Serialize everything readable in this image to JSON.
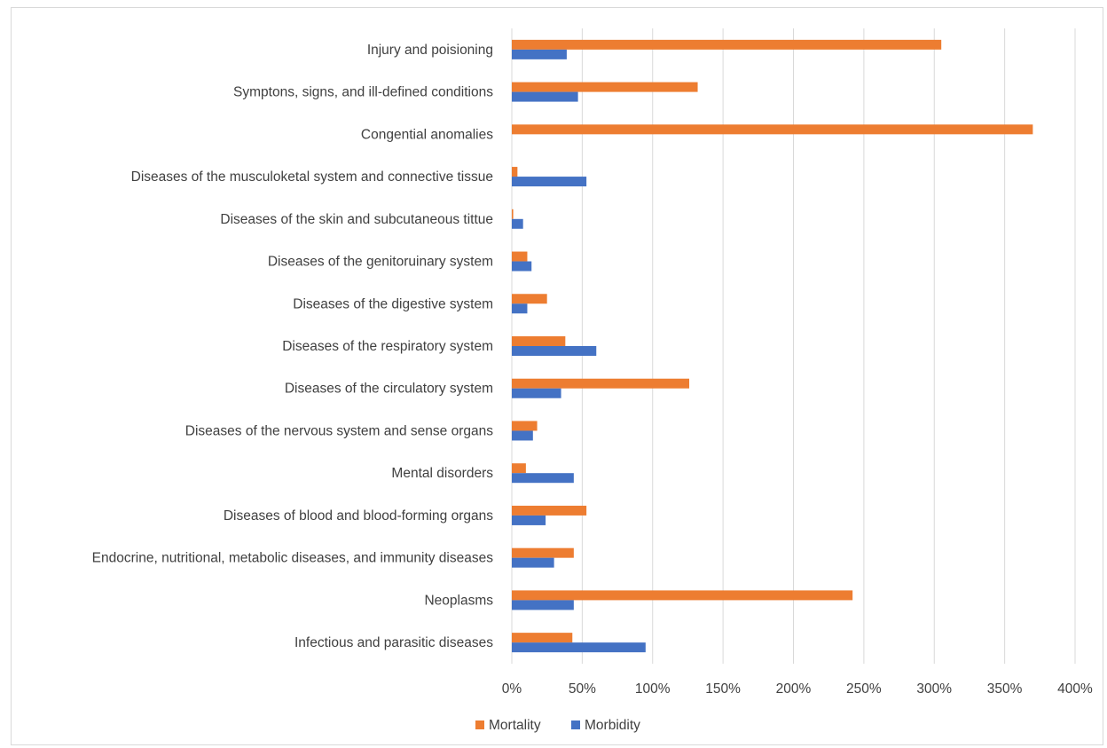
{
  "chart_data": {
    "type": "bar",
    "orientation": "horizontal",
    "title": "",
    "xlabel": "",
    "ylabel": "",
    "xlim": [
      0,
      4
    ],
    "x_ticks": [
      0,
      0.5,
      1,
      1.5,
      2,
      2.5,
      3,
      3.5,
      4
    ],
    "x_tick_labels": [
      "0%",
      "50%",
      "100%",
      "150%",
      "200%",
      "250%",
      "300%",
      "350%",
      "400%"
    ],
    "grid": "vertical",
    "legend_position": "bottom",
    "categories": [
      "Injury and poisioning",
      "Symptons, signs, and ill-defined conditions",
      "Congential anomalies",
      "Diseases of the musculoketal system and connective tissue",
      "Diseases of the skin and subcutaneous tittue",
      "Diseases of the genitoruinary system",
      "Diseases of the digestive system",
      "Diseases of the respiratory system",
      "Diseases of the circulatory system",
      "Diseases of the nervous system and sense organs",
      "Mental disorders",
      "Diseases of blood and blood-forming organs",
      "Endocrine, nutritional, metabolic diseases, and immunity diseases",
      "Neoplasms",
      "Infectious and parasitic diseases"
    ],
    "series": [
      {
        "name": "Mortality",
        "color": "#ed7d31",
        "values": [
          3.05,
          1.32,
          3.7,
          0.04,
          0.01,
          0.11,
          0.25,
          0.38,
          1.26,
          0.18,
          0.1,
          0.53,
          0.44,
          2.42,
          0.43
        ]
      },
      {
        "name": "Morbidity",
        "color": "#4472c4",
        "values": [
          0.39,
          0.47,
          0.0,
          0.53,
          0.08,
          0.14,
          0.11,
          0.6,
          0.35,
          0.15,
          0.44,
          0.24,
          0.3,
          0.44,
          0.95
        ]
      }
    ]
  }
}
